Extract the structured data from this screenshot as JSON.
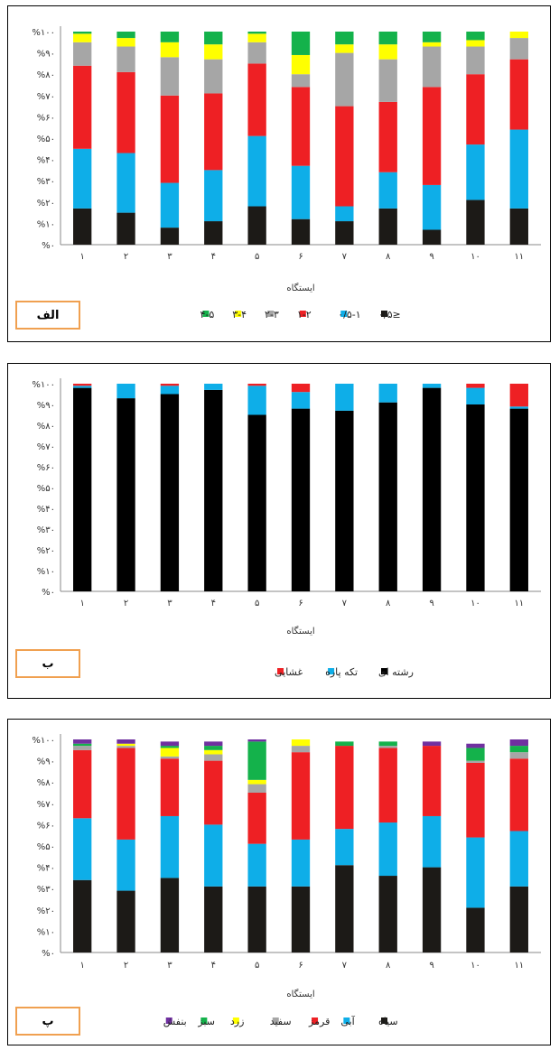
{
  "chart_data": [
    {
      "type": "bar",
      "stacked": true,
      "panel_tag": "الف",
      "xlabel": "ایستگاه",
      "categories": [
        "۱",
        "۲",
        "۳",
        "۴",
        "۵",
        "۶",
        "۷",
        "۸",
        "۹",
        "۱۰",
        "۱۱"
      ],
      "y_ticks": [
        "%۰",
        "%۱۰",
        "%۲۰",
        "%۳۰",
        "%۴۰",
        "%۵۰",
        "%۶۰",
        "%۷۰",
        "%۸۰",
        "%۹۰",
        "%۱۰۰"
      ],
      "ylim": [
        0,
        100
      ],
      "series": [
        {
          "name": "≤۰/۵",
          "color": "#1c1a17",
          "values": [
            17,
            15,
            8,
            11,
            18,
            12,
            11,
            17,
            7,
            21,
            17
          ]
        },
        {
          "name": "۰/۵-۱",
          "color": "#0eaee8",
          "values": [
            28,
            28,
            21,
            24,
            33,
            25,
            7,
            17,
            21,
            26,
            37
          ]
        },
        {
          "name": "۱-۲",
          "color": "#ee2024",
          "values": [
            39,
            38,
            41,
            36,
            34,
            37,
            47,
            33,
            46,
            33,
            33
          ]
        },
        {
          "name": "۲-۳",
          "color": "#a6a6a6",
          "values": [
            11,
            12,
            18,
            16,
            10,
            6,
            25,
            20,
            19,
            13,
            10
          ]
        },
        {
          "name": "۳-۴",
          "color": "#ffff00",
          "values": [
            4,
            4,
            7,
            7,
            4,
            9,
            4,
            7,
            2,
            3,
            3
          ]
        },
        {
          "name": "۴-۵",
          "color": "#14b24b",
          "values": [
            1,
            3,
            5,
            6,
            1,
            11,
            6,
            6,
            5,
            4,
            0
          ]
        }
      ]
    },
    {
      "type": "bar",
      "stacked": true,
      "panel_tag": "ب",
      "xlabel": "ایستگاه",
      "categories": [
        "۱",
        "۲",
        "۳",
        "۴",
        "۵",
        "۶",
        "۷",
        "۸",
        "۹",
        "۱۰",
        "۱۱"
      ],
      "y_ticks": [
        "%۰",
        "%۱۰",
        "%۲۰",
        "%۳۰",
        "%۴۰",
        "%۵۰",
        "%۶۰",
        "%۷۰",
        "%۸۰",
        "%۹۰",
        "%۱۰۰"
      ],
      "ylim": [
        0,
        100
      ],
      "series": [
        {
          "name": "رشته ای",
          "color": "#000000",
          "values": [
            98,
            93,
            95,
            97,
            85,
            88,
            87,
            91,
            98,
            90,
            88
          ]
        },
        {
          "name": "تکه پاره",
          "color": "#0eaee8",
          "values": [
            1,
            7,
            4,
            3,
            14,
            8,
            13,
            9,
            2,
            8,
            1
          ]
        },
        {
          "name": "غشایی",
          "color": "#ee2024",
          "values": [
            1,
            0,
            1,
            0,
            1,
            4,
            0,
            0,
            0,
            2,
            11
          ]
        }
      ]
    },
    {
      "type": "bar",
      "stacked": true,
      "panel_tag": "پ",
      "xlabel": "ایستگاه",
      "categories": [
        "۱",
        "۲",
        "۳",
        "۴",
        "۵",
        "۶",
        "۷",
        "۸",
        "۹",
        "۱۰",
        "۱۱"
      ],
      "y_ticks": [
        "%۰",
        "%۱۰",
        "%۲۰",
        "%۳۰",
        "%۴۰",
        "%۵۰",
        "%۶۰",
        "%۷۰",
        "%۸۰",
        "%۹۰",
        "%۱۰۰"
      ],
      "ylim": [
        0,
        100
      ],
      "series": [
        {
          "name": "سیاه",
          "color": "#1c1a17",
          "values": [
            34,
            29,
            35,
            31,
            31,
            31,
            41,
            36,
            40,
            21,
            31
          ]
        },
        {
          "name": "آبی",
          "color": "#0eaee8",
          "values": [
            29,
            24,
            29,
            29,
            20,
            22,
            17,
            25,
            24,
            33,
            26
          ]
        },
        {
          "name": "قرمز",
          "color": "#ee2024",
          "values": [
            32,
            43,
            27,
            30,
            24,
            41,
            39,
            35,
            33,
            35,
            34
          ]
        },
        {
          "name": "سفید",
          "color": "#a6a6a6",
          "values": [
            2,
            1,
            1,
            3,
            4,
            3,
            0,
            1,
            0,
            1,
            3
          ]
        },
        {
          "name": "زرد",
          "color": "#ffff00",
          "values": [
            0,
            1,
            4,
            2,
            2,
            3,
            0,
            0,
            0,
            0,
            0
          ]
        },
        {
          "name": "سبز",
          "color": "#14b24b",
          "values": [
            1,
            0,
            1,
            2,
            18,
            0,
            2,
            2,
            0,
            6,
            3
          ]
        },
        {
          "name": "بنفش",
          "color": "#7030a0",
          "values": [
            2,
            2,
            2,
            2,
            1,
            0,
            0,
            0,
            2,
            2,
            3
          ]
        }
      ]
    }
  ]
}
